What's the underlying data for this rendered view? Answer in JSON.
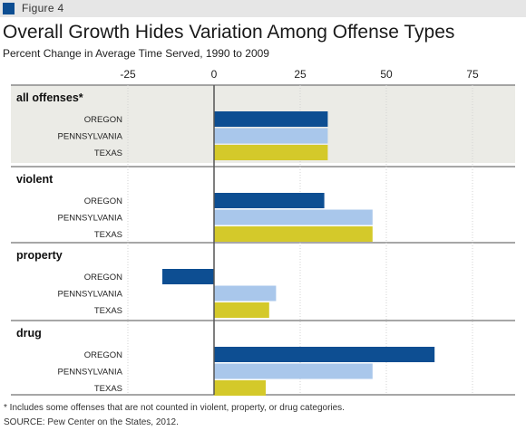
{
  "figure_label": "Figure 4",
  "title": "Overall Growth Hides Variation Among Offense Types",
  "subtitle": "Percent Change in Average Time Served, 1990 to 2009",
  "footnote": "* Includes some offenses that are not counted in violent, property, or drug categories.",
  "source": "SOURCE: Pew Center on the States, 2012.",
  "colors": {
    "oregon": "#0d4e92",
    "pennsylvania": "#a9c7eb",
    "texas": "#d4c92a",
    "highlight_band": "#ebebe6",
    "axis_zero": "#555555"
  },
  "chart_data": {
    "type": "bar",
    "orientation": "horizontal",
    "xlim": [
      -25,
      85
    ],
    "xticks": [
      "-25",
      "0",
      "25",
      "50",
      "75"
    ],
    "xtick_values": [
      -25,
      0,
      25,
      50,
      75
    ],
    "grid": true,
    "groups": [
      {
        "name": "all offenses*",
        "highlight": true,
        "bars": [
          {
            "state": "OREGON",
            "value": 33
          },
          {
            "state": "PENNSYLVANIA",
            "value": 33
          },
          {
            "state": "TEXAS",
            "value": 33
          }
        ]
      },
      {
        "name": "violent",
        "highlight": false,
        "bars": [
          {
            "state": "OREGON",
            "value": 32
          },
          {
            "state": "PENNSYLVANIA",
            "value": 46
          },
          {
            "state": "TEXAS",
            "value": 46
          }
        ]
      },
      {
        "name": "property",
        "highlight": false,
        "bars": [
          {
            "state": "OREGON",
            "value": -15
          },
          {
            "state": "PENNSYLVANIA",
            "value": 18
          },
          {
            "state": "TEXAS",
            "value": 16
          }
        ]
      },
      {
        "name": "drug",
        "highlight": false,
        "bars": [
          {
            "state": "OREGON",
            "value": 64
          },
          {
            "state": "PENNSYLVANIA",
            "value": 46
          },
          {
            "state": "TEXAS",
            "value": 15
          }
        ]
      }
    ]
  }
}
